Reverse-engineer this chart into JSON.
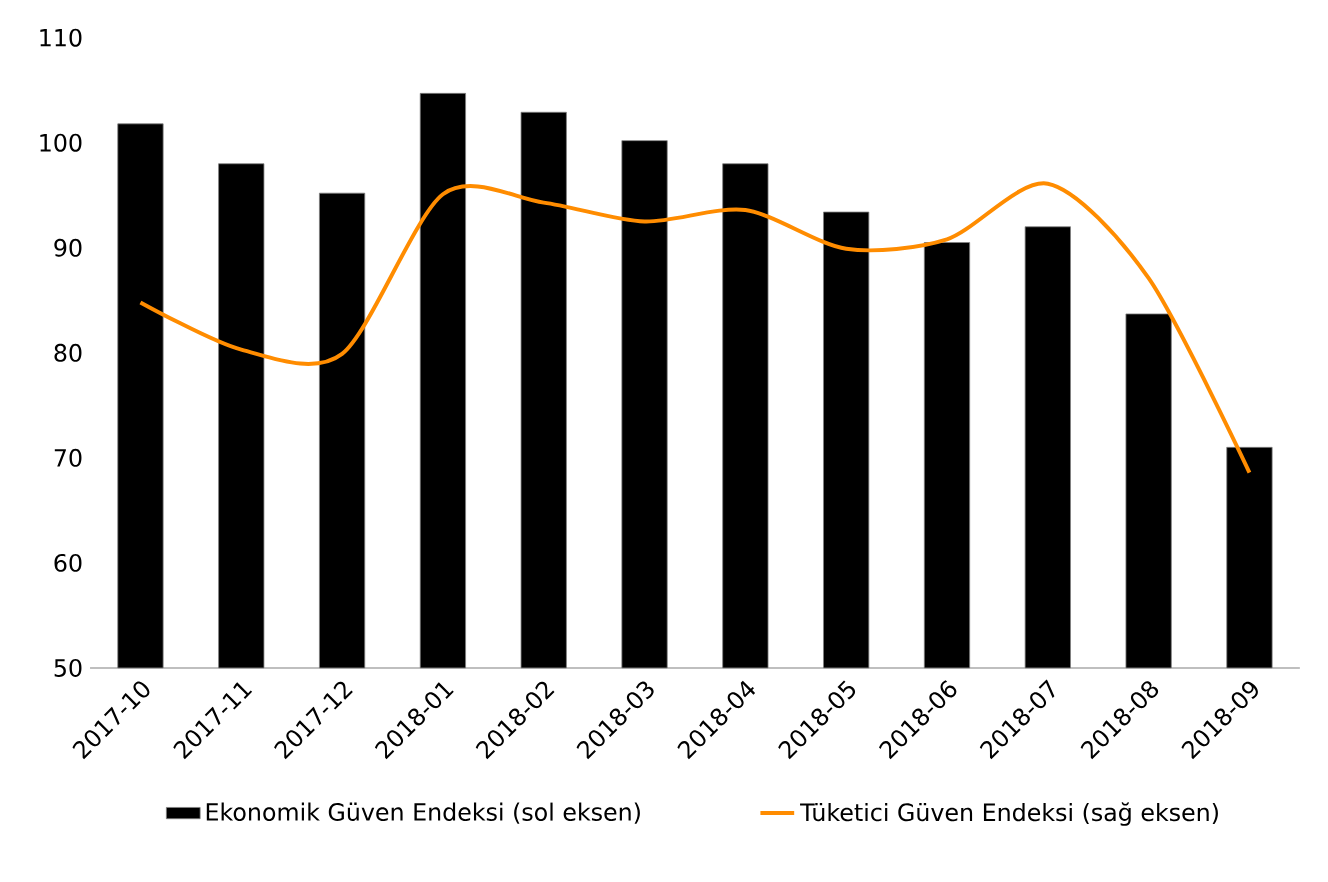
{
  "chart_data": {
    "type": "bar",
    "categories": [
      "2017-10",
      "2017-11",
      "2017-12",
      "2018-01",
      "2018-02",
      "2018-03",
      "2018-04",
      "2018-05",
      "2018-06",
      "2018-07",
      "2018-08",
      "2018-09"
    ],
    "series": [
      {
        "name": "Ekonomik Güven Endeksi (sol eksen)",
        "color": "#000000",
        "values": [
          101.8,
          98.0,
          95.2,
          104.7,
          102.9,
          100.2,
          98.0,
          93.4,
          90.5,
          92.0,
          83.7,
          71.0
        ]
      },
      {
        "name": "Tüketici Güven Endeksi (sağ eksen)",
        "type": "line",
        "color": "#ff8c00",
        "values": [
          84.8,
          80.3,
          79.9,
          95.1,
          94.3,
          92.5,
          93.6,
          89.9,
          90.8,
          96.1,
          87.1,
          68.6
        ]
      }
    ],
    "ylim": [
      50,
      110
    ],
    "yticks": [
      50,
      60,
      70,
      80,
      90,
      100,
      110
    ],
    "grid": false,
    "legend": "bottom",
    "marker": "none",
    "line_style": "solid"
  }
}
